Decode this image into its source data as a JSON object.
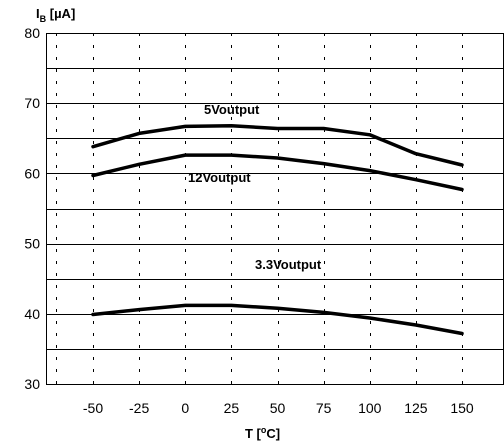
{
  "chart_data": {
    "type": "line",
    "x": [
      -50,
      -25,
      0,
      25,
      50,
      75,
      100,
      125,
      150
    ],
    "series": [
      {
        "name": "5Voutput",
        "values": [
          63.8,
          65.7,
          66.7,
          66.8,
          66.4,
          66.4,
          65.5,
          62.8,
          61.2
        ]
      },
      {
        "name": "12Voutput",
        "values": [
          59.7,
          61.3,
          62.6,
          62.6,
          62.2,
          61.4,
          60.4,
          59.1,
          57.7
        ]
      },
      {
        "name": "3.3Voutput",
        "values": [
          39.9,
          40.6,
          41.2,
          41.2,
          40.8,
          40.2,
          39.4,
          38.4,
          37.2
        ]
      }
    ],
    "ylim": [
      30,
      80
    ],
    "xlim": [
      -50,
      150
    ],
    "yticks": [
      "30",
      "40",
      "50",
      "60",
      "70",
      "80"
    ],
    "xticks": [
      "-50",
      "-25",
      "0",
      "25",
      "50",
      "75",
      "100",
      "125",
      "150"
    ],
    "ylabel": {
      "main": "I",
      "sub": "B",
      "unit": " [µA]"
    },
    "xlabel": {
      "main": "T [",
      "sup": "o",
      "unit": "C]"
    },
    "grid": {
      "major_y": "solid",
      "minor_y": "solid",
      "x": "dashed"
    }
  }
}
